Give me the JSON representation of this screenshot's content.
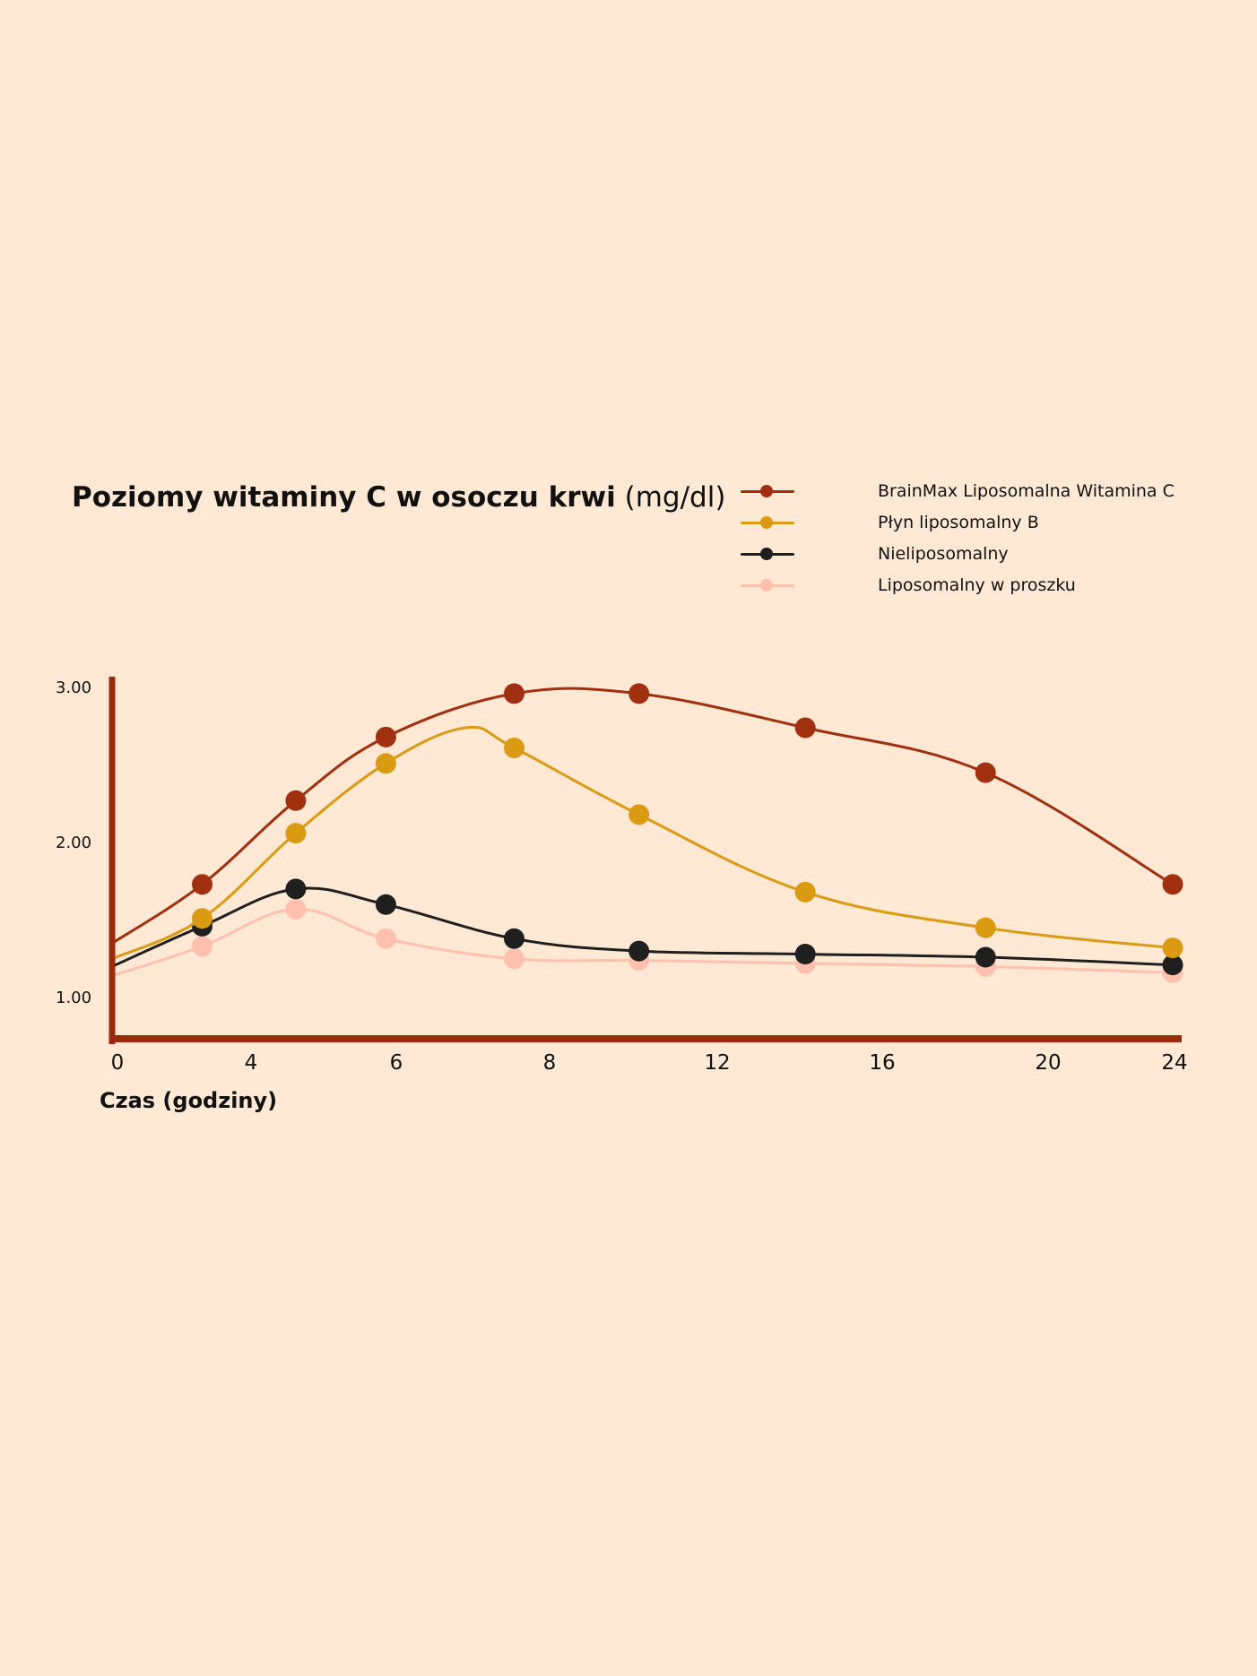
{
  "chart": {
    "title_bold": "Poziomy witaminy C w osoczu krwi",
    "title_unit": "(mg/dl)",
    "xlabel": "Czas (godziny)"
  },
  "chart_data": {
    "type": "line",
    "title": "Poziomy witaminy C w osoczu krwi (mg/dl)",
    "xlabel": "Czas (godziny)",
    "ylabel": "",
    "x_tick_labels": [
      "0",
      "4",
      "6",
      "8",
      "12",
      "16",
      "20",
      "24"
    ],
    "y_ticks": [
      {
        "label": "1.00",
        "value": 1.0
      },
      {
        "label": "2.00",
        "value": 2.0
      },
      {
        "label": "3.00",
        "value": 3.0
      }
    ],
    "legend_position": "top-right",
    "grid": false,
    "axis_color": "#992B0C",
    "series": [
      {
        "name": "BrainMax Liposomalna Witamina C",
        "color": "#A0300F",
        "values": [
          {
            "x": 0,
            "y": 1.35
          },
          {
            "x": 2.6,
            "y": 1.73
          },
          {
            "x": 5.3,
            "y": 2.27
          },
          {
            "x": 7.9,
            "y": 2.68
          },
          {
            "x": 11.6,
            "y": 2.96
          },
          {
            "x": 15.2,
            "y": 2.96
          },
          {
            "x": 20.0,
            "y": 2.74
          },
          {
            "x": 25.2,
            "y": 2.45
          },
          {
            "x": 30.6,
            "y": 1.73
          }
        ]
      },
      {
        "name": "Płyn liposomalny B",
        "color": "#DA9A12",
        "values": [
          {
            "x": 0,
            "y": 1.25
          },
          {
            "x": 2.6,
            "y": 1.51
          },
          {
            "x": 5.3,
            "y": 2.06
          },
          {
            "x": 7.9,
            "y": 2.51
          },
          {
            "x": 10.2,
            "y": 2.74
          },
          {
            "x": 11.6,
            "y": 2.61
          },
          {
            "x": 15.2,
            "y": 2.18
          },
          {
            "x": 20.0,
            "y": 1.68
          },
          {
            "x": 25.2,
            "y": 1.45
          },
          {
            "x": 30.6,
            "y": 1.32
          }
        ]
      },
      {
        "name": "Nieliposomalny",
        "color": "#1F1F1F",
        "values": [
          {
            "x": 0,
            "y": 1.2
          },
          {
            "x": 2.6,
            "y": 1.46
          },
          {
            "x": 5.3,
            "y": 1.7
          },
          {
            "x": 7.9,
            "y": 1.6
          },
          {
            "x": 11.6,
            "y": 1.38
          },
          {
            "x": 15.2,
            "y": 1.3
          },
          {
            "x": 20.0,
            "y": 1.28
          },
          {
            "x": 25.2,
            "y": 1.26
          },
          {
            "x": 30.6,
            "y": 1.21
          }
        ]
      },
      {
        "name": "Liposomalny w proszku",
        "color": "#FFC0AE",
        "values": [
          {
            "x": 0,
            "y": 1.14
          },
          {
            "x": 2.6,
            "y": 1.33
          },
          {
            "x": 5.3,
            "y": 1.57
          },
          {
            "x": 7.9,
            "y": 1.38
          },
          {
            "x": 11.6,
            "y": 1.25
          },
          {
            "x": 15.2,
            "y": 1.24
          },
          {
            "x": 20.0,
            "y": 1.22
          },
          {
            "x": 25.2,
            "y": 1.2
          },
          {
            "x": 30.6,
            "y": 1.16
          }
        ]
      }
    ]
  }
}
